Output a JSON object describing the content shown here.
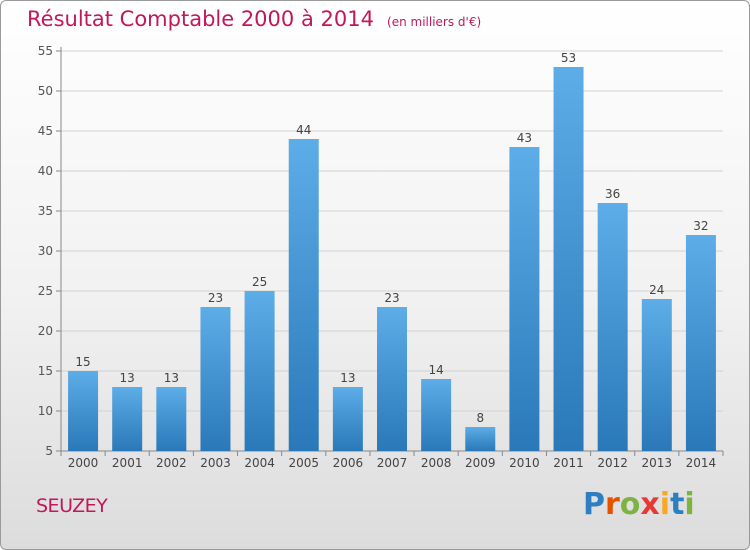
{
  "chart_data": {
    "type": "bar",
    "title": "Résultat Comptable 2000 à 2014",
    "subtitle": "(en milliers d'€)",
    "categories": [
      "2000",
      "2001",
      "2002",
      "2003",
      "2004",
      "2005",
      "2006",
      "2007",
      "2008",
      "2009",
      "2010",
      "2011",
      "2012",
      "2013",
      "2014"
    ],
    "values": [
      15,
      13,
      13,
      23,
      25,
      44,
      13,
      23,
      14,
      8,
      43,
      53,
      36,
      24,
      32
    ],
    "ylim": [
      5,
      55
    ],
    "yticks": [
      5,
      10,
      15,
      20,
      25,
      30,
      35,
      40,
      45,
      50,
      55
    ],
    "grid": true,
    "xlabel": "",
    "ylabel": "",
    "bar_color": "#3d8fd4"
  },
  "footer": {
    "town": "SEUZEY",
    "brand_letters": [
      {
        "char": "P",
        "color": "#2e7fc1"
      },
      {
        "char": "r",
        "color": "#e65100"
      },
      {
        "char": "o",
        "color": "#7cb342"
      },
      {
        "char": "x",
        "color": "#e53935"
      },
      {
        "char": "i",
        "color": "#f9a825"
      },
      {
        "char": "t",
        "color": "#2e7fc1"
      },
      {
        "char": "i",
        "color": "#7cb342"
      }
    ]
  }
}
